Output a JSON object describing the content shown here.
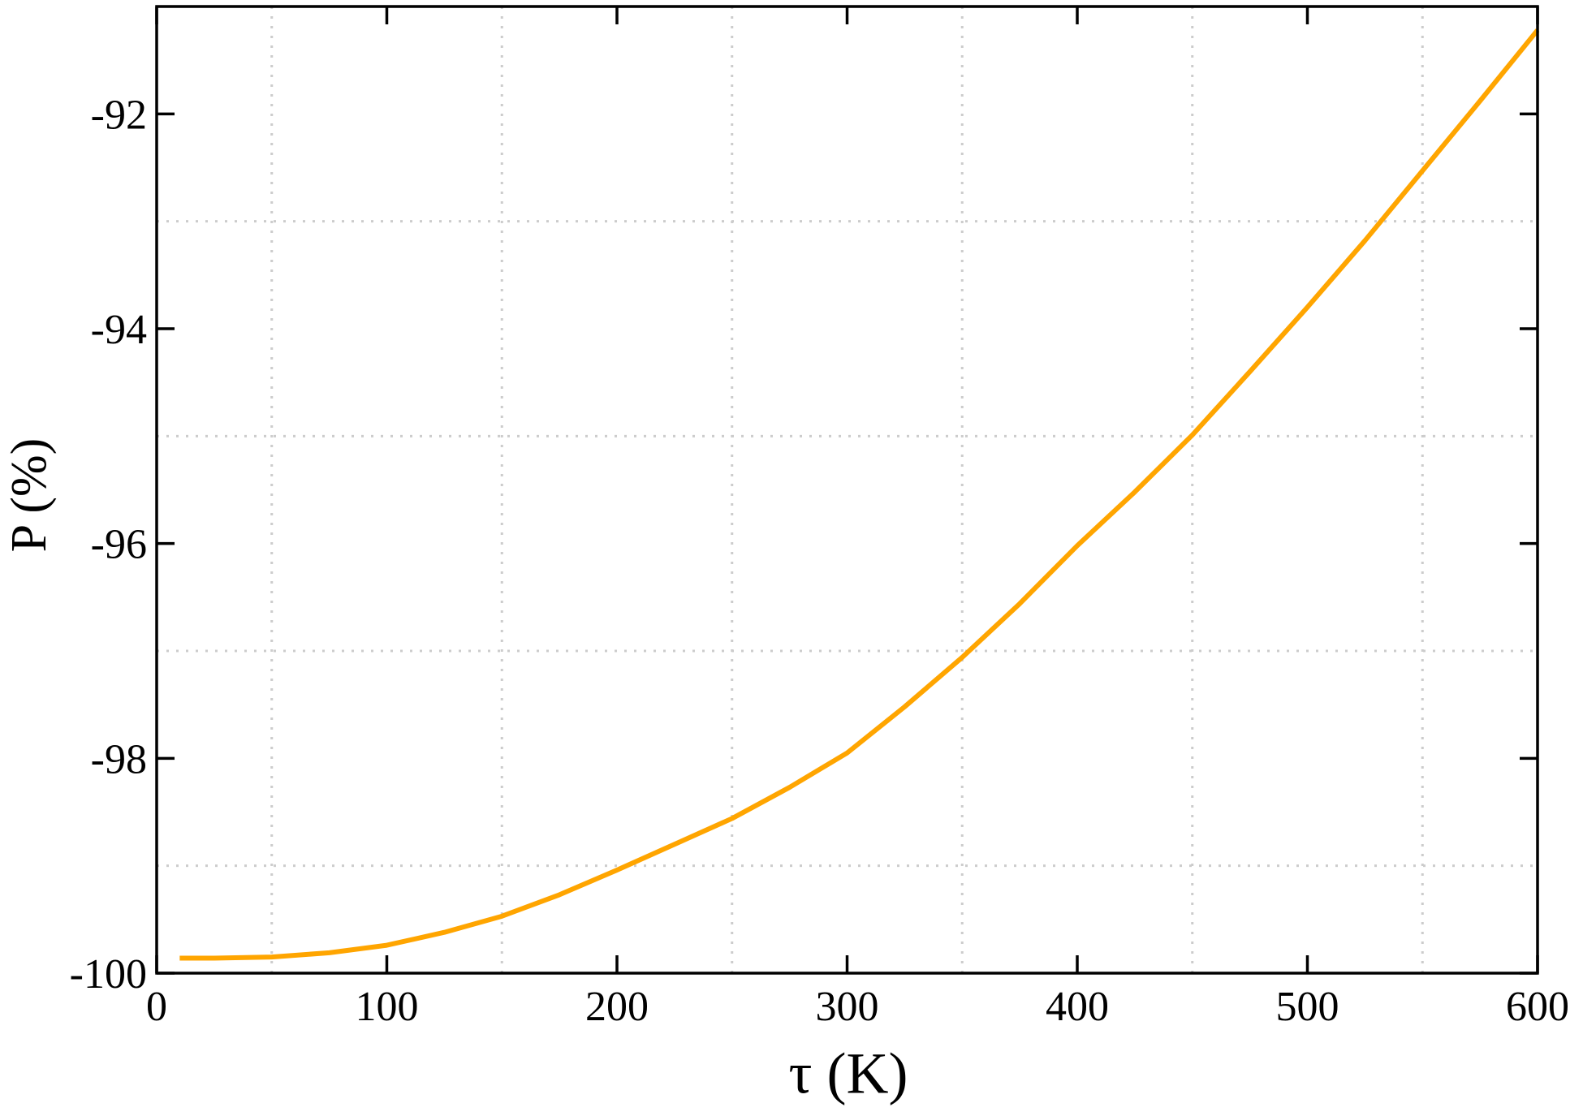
{
  "chart_data": {
    "type": "line",
    "xlabel": "τ (K)",
    "ylabel": "P (%)",
    "x": [
      10,
      25,
      50,
      75,
      100,
      125,
      150,
      175,
      200,
      225,
      250,
      275,
      300,
      325,
      350,
      375,
      400,
      425,
      450,
      475,
      500,
      525,
      550,
      575,
      600
    ],
    "series": [
      {
        "color": "#FFA500",
        "values": [
          -99.86,
          -99.86,
          -99.85,
          -99.81,
          -99.74,
          -99.62,
          -99.47,
          -99.27,
          -99.04,
          -98.8,
          -98.56,
          -98.27,
          -97.95,
          -97.52,
          -97.06,
          -96.56,
          -96.02,
          -95.52,
          -94.99,
          -94.4,
          -93.8,
          -93.18,
          -92.53,
          -91.88,
          -91.22
        ]
      }
    ],
    "xlim": [
      0,
      600
    ],
    "ylim": [
      -100,
      -91
    ],
    "xticks": [
      0,
      100,
      200,
      300,
      400,
      500,
      600
    ],
    "yticks": [
      -100,
      -98,
      -96,
      -94,
      -92
    ],
    "xgrid": [
      50,
      150,
      250,
      350,
      450,
      550
    ],
    "ygrid": [
      -99,
      -97,
      -95,
      -93
    ],
    "grid": true
  }
}
